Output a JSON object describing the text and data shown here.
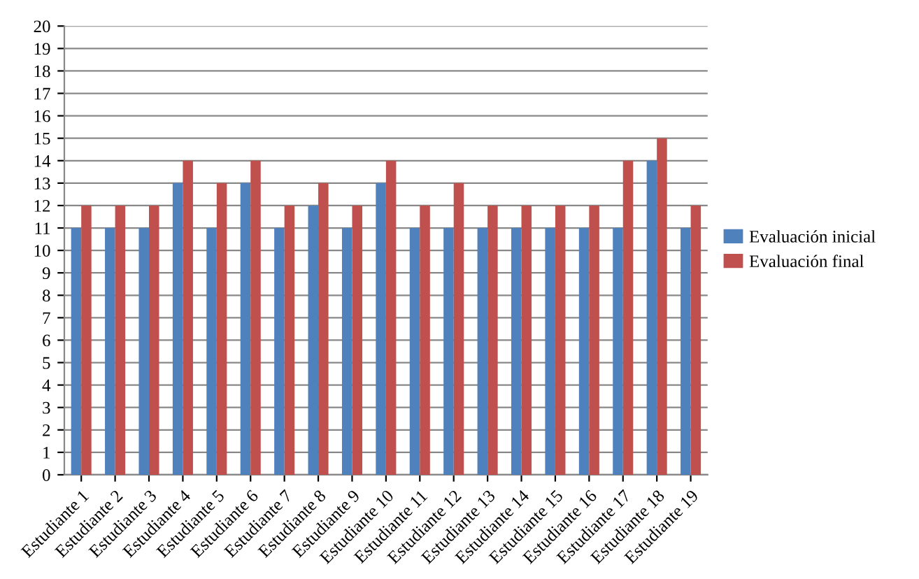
{
  "chart_data": {
    "type": "bar",
    "categories": [
      "Estudiante 1",
      "Estudiante 2",
      "Estudiante 3",
      "Estudiante 4",
      "Estudiante 5",
      "Estudiante 6",
      "Estudiante 7",
      "Estudiante 8",
      "Estudiante 9",
      "Estudiante 10",
      "Estudiante 11",
      "Estudiante 12",
      "Estudiante 13",
      "Estudiante 14",
      "Estudiante 15",
      "Estudiante 16",
      "Estudiante 17",
      "Estudiante 18",
      "Estudiante 19"
    ],
    "series": [
      {
        "name": "Evaluación inicial",
        "color": "#4f81bd",
        "values": [
          11,
          11,
          11,
          13,
          11,
          13,
          11,
          12,
          11,
          13,
          11,
          11,
          11,
          11,
          11,
          11,
          11,
          14,
          11
        ]
      },
      {
        "name": "Evaluación final",
        "color": "#c0504d",
        "values": [
          12,
          12,
          12,
          14,
          13,
          14,
          12,
          13,
          12,
          14,
          12,
          13,
          12,
          12,
          12,
          12,
          14,
          15,
          12
        ]
      }
    ],
    "ylim": [
      0,
      20
    ],
    "yticks": [
      0,
      1,
      2,
      3,
      4,
      5,
      6,
      7,
      8,
      9,
      10,
      11,
      12,
      13,
      14,
      15,
      16,
      17,
      18,
      19,
      20
    ],
    "grid": "y",
    "legend": "right"
  }
}
